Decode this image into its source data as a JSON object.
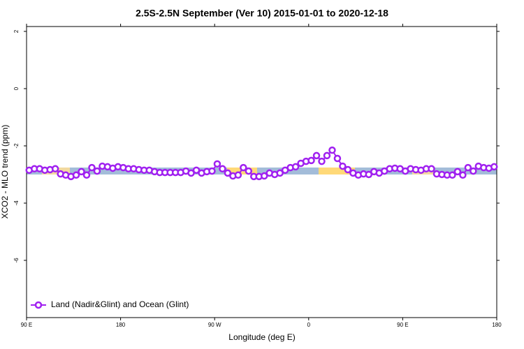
{
  "chart_data": {
    "type": "line",
    "title": "2.5S-2.5N September (Ver 10)   2015-01-01 to 2020-12-18",
    "x_label": "Longitude (deg E)",
    "y_label": "XCO2 - MLO trend (ppm)",
    "xlim": [
      90,
      540
    ],
    "ylim": [
      -8,
      2.17
    ],
    "xticks": [
      {
        "value": 90,
        "label": "90 E"
      },
      180,
      {
        "value": 270,
        "label": "90 W"
      },
      {
        "value": 360,
        "label": "0"
      },
      {
        "value": 450,
        "label": "90 E"
      },
      {
        "value": 540,
        "label": "180"
      }
    ],
    "yticks": [
      -6,
      -4,
      -2,
      0,
      2
    ],
    "legend": "bottom-left",
    "x": [
      92.5,
      97.5,
      102.5,
      107.5,
      112.5,
      117.5,
      122.5,
      127.5,
      132.5,
      137.5,
      142.5,
      147.5,
      152.5,
      157.5,
      162.5,
      167.5,
      172.5,
      177.5,
      182.5,
      187.5,
      192.5,
      197.5,
      202.5,
      207.5,
      212.5,
      217.5,
      222.5,
      227.5,
      232.5,
      237.5,
      242.5,
      247.5,
      252.5,
      257.5,
      262.5,
      267.5,
      272.5,
      277.5,
      282.5,
      287.5,
      292.5,
      297.5,
      302.5,
      307.5,
      312.5,
      317.5,
      322.5,
      327.5,
      332.5,
      337.5,
      342.5,
      347.5,
      352.5,
      357.5,
      362.5,
      367.5,
      372.5,
      377.5,
      382.5,
      387.5,
      392.5,
      397.5,
      402.5,
      407.5,
      412.5,
      417.5,
      422.5,
      427.5,
      432.5,
      437.5,
      442.5,
      447.5,
      452.5,
      457.5,
      462.5,
      467.5,
      472.5,
      477.5,
      482.5,
      487.5,
      492.5,
      497.5,
      502.5,
      507.5,
      512.5,
      517.5,
      522.5,
      527.5,
      532.5,
      537.5
    ],
    "series": [
      {
        "name": "Land (Nadir&Glint) and Ocean (Glint)",
        "color": "#a020f0",
        "values": [
          -2.85,
          -2.8,
          -2.8,
          -2.85,
          -2.83,
          -2.8,
          -2.98,
          -3.02,
          -3.07,
          -3.02,
          -2.9,
          -3.02,
          -2.76,
          -2.88,
          -2.71,
          -2.73,
          -2.78,
          -2.73,
          -2.76,
          -2.8,
          -2.8,
          -2.83,
          -2.85,
          -2.85,
          -2.9,
          -2.93,
          -2.93,
          -2.93,
          -2.93,
          -2.93,
          -2.88,
          -2.95,
          -2.85,
          -2.95,
          -2.9,
          -2.88,
          -2.63,
          -2.8,
          -2.95,
          -3.05,
          -3.02,
          -2.76,
          -2.88,
          -3.07,
          -3.07,
          -3.05,
          -2.95,
          -3.0,
          -2.95,
          -2.85,
          -2.76,
          -2.73,
          -2.61,
          -2.54,
          -2.51,
          -2.34,
          -2.54,
          -2.34,
          -2.15,
          -2.44,
          -2.71,
          -2.83,
          -2.95,
          -3.02,
          -2.98,
          -3.0,
          -2.9,
          -2.95,
          -2.88,
          -2.8,
          -2.78,
          -2.8,
          -2.88,
          -2.8,
          -2.83,
          -2.85,
          -2.8,
          -2.8,
          -2.98,
          -3.0,
          -3.02,
          -3.02,
          -2.9,
          -3.02,
          -2.76,
          -2.88,
          -2.71,
          -2.76,
          -2.78,
          -2.73
        ]
      }
    ]
  }
}
